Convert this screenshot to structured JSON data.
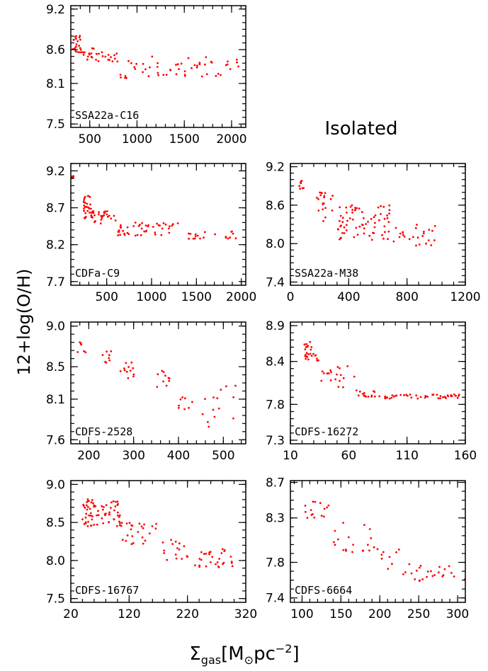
{
  "figure": {
    "ylabel": "12+log(O/H)",
    "xlabel": {
      "sigma": "Σ",
      "sub": "gas",
      "bracket_open": "[M",
      "sun": "⊙",
      "unit": "pc",
      "exp": "−2",
      "bracket_close": "]"
    },
    "annotation": "Isolated"
  },
  "chart_data": [
    {
      "type": "scatter",
      "label": "SSA22a-C16",
      "xlim": [
        300,
        2150
      ],
      "ylim": [
        7.45,
        9.25
      ],
      "xticks": [
        500,
        1000,
        1500,
        2000
      ],
      "yticks": [
        7.5,
        8.1,
        8.6,
        9.2
      ],
      "ytick_labels": [
        "7.5",
        "8.1",
        "8.6",
        "9.2"
      ],
      "seed": 11,
      "groups": [
        {
          "n": 22,
          "x": [
            320,
            420
          ],
          "y": [
            8.55,
            8.82
          ]
        },
        {
          "n": 28,
          "x": [
            420,
            800
          ],
          "y": [
            8.42,
            8.62
          ]
        },
        {
          "n": 55,
          "x": [
            800,
            2080
          ],
          "y": [
            8.18,
            8.5
          ]
        }
      ]
    },
    {
      "type": "scatter",
      "label": "CDFa-C9",
      "xlim": [
        100,
        2050
      ],
      "ylim": [
        7.65,
        9.3
      ],
      "xticks": [
        500,
        1000,
        1500,
        2000
      ],
      "yticks": [
        7.7,
        8.2,
        8.7,
        9.2
      ],
      "ytick_labels": [
        "7.7",
        "8.2",
        "8.7",
        "9.2"
      ],
      "seed": 23,
      "groups": [
        {
          "n": 4,
          "x": [
            105,
            140
          ],
          "y": [
            9.08,
            9.14
          ]
        },
        {
          "n": 30,
          "x": [
            240,
            330
          ],
          "y": [
            8.55,
            8.88
          ]
        },
        {
          "n": 30,
          "x": [
            330,
            600
          ],
          "y": [
            8.48,
            8.66
          ]
        },
        {
          "n": 45,
          "x": [
            600,
            1300
          ],
          "y": [
            8.32,
            8.5
          ]
        },
        {
          "n": 20,
          "x": [
            1300,
            1950
          ],
          "y": [
            8.28,
            8.38
          ]
        }
      ]
    },
    {
      "type": "scatter",
      "label": "SSA22a-M38",
      "xlim": [
        0,
        1200
      ],
      "ylim": [
        7.35,
        9.25
      ],
      "xticks": [
        0,
        400,
        800,
        1200
      ],
      "yticks": [
        7.4,
        8.0,
        8.6,
        9.2
      ],
      "ytick_labels": [
        "7.4",
        "8.0",
        "8.6",
        "9.2"
      ],
      "seed": 37,
      "groups": [
        {
          "n": 8,
          "x": [
            60,
            100
          ],
          "y": [
            8.85,
            9.02
          ]
        },
        {
          "n": 20,
          "x": [
            180,
            320
          ],
          "y": [
            8.35,
            8.8
          ]
        },
        {
          "n": 70,
          "x": [
            320,
            700
          ],
          "y": [
            8.05,
            8.6
          ]
        },
        {
          "n": 25,
          "x": [
            700,
            1000
          ],
          "y": [
            7.95,
            8.3
          ]
        }
      ]
    },
    {
      "type": "scatter",
      "label": "CDFS-2528",
      "xlim": [
        160,
        550
      ],
      "ylim": [
        7.55,
        9.05
      ],
      "xticks": [
        200,
        300,
        400,
        500
      ],
      "yticks": [
        7.6,
        8.1,
        8.5,
        9.0
      ],
      "ytick_labels": [
        "7.6",
        "8.1",
        "8.5",
        "9.0"
      ],
      "seed": 41,
      "groups": [
        {
          "n": 6,
          "x": [
            175,
            195
          ],
          "y": [
            8.65,
            8.8
          ]
        },
        {
          "n": 8,
          "x": [
            220,
            250
          ],
          "y": [
            8.55,
            8.7
          ]
        },
        {
          "n": 12,
          "x": [
            270,
            305
          ],
          "y": [
            8.35,
            8.58
          ]
        },
        {
          "n": 10,
          "x": [
            350,
            380
          ],
          "y": [
            8.2,
            8.45
          ]
        },
        {
          "n": 8,
          "x": [
            400,
            440
          ],
          "y": [
            7.95,
            8.15
          ]
        },
        {
          "n": 14,
          "x": [
            450,
            535
          ],
          "y": [
            7.75,
            8.28
          ]
        }
      ]
    },
    {
      "type": "scatter",
      "label": "CDFS-16272",
      "xlim": [
        10,
        160
      ],
      "ylim": [
        7.25,
        8.95
      ],
      "xticks": [
        10,
        60,
        110,
        160
      ],
      "yticks": [
        7.3,
        7.8,
        8.4,
        8.9
      ],
      "ytick_labels": [
        "7.3",
        "7.8",
        "8.4",
        "8.9"
      ],
      "seed": 53,
      "groups": [
        {
          "n": 25,
          "x": [
            22,
            35
          ],
          "y": [
            8.4,
            8.72
          ]
        },
        {
          "n": 20,
          "x": [
            35,
            65
          ],
          "y": [
            7.98,
            8.35
          ]
        },
        {
          "n": 15,
          "x": [
            65,
            85
          ],
          "y": [
            7.9,
            8.0
          ]
        },
        {
          "n": 45,
          "x": [
            85,
            155
          ],
          "y": [
            7.88,
            7.94
          ]
        }
      ]
    },
    {
      "type": "scatter",
      "label": "CDFS-16767",
      "xlim": [
        20,
        320
      ],
      "ylim": [
        7.45,
        9.05
      ],
      "xticks": [
        20,
        120,
        220,
        320
      ],
      "yticks": [
        7.5,
        8.0,
        8.5,
        9.0
      ],
      "ytick_labels": [
        "7.5",
        "8.0",
        "8.5",
        "9.0"
      ],
      "seed": 67,
      "groups": [
        {
          "n": 70,
          "x": [
            40,
            105
          ],
          "y": [
            8.45,
            8.82
          ]
        },
        {
          "n": 25,
          "x": [
            105,
            170
          ],
          "y": [
            8.2,
            8.5
          ]
        },
        {
          "n": 15,
          "x": [
            170,
            220
          ],
          "y": [
            8.0,
            8.35
          ]
        },
        {
          "n": 30,
          "x": [
            220,
            300
          ],
          "y": [
            7.88,
            8.15
          ]
        }
      ]
    },
    {
      "type": "scatter",
      "label": "CDFS-6664",
      "xlim": [
        85,
        310
      ],
      "ylim": [
        7.35,
        8.72
      ],
      "xticks": [
        100,
        150,
        200,
        250,
        300
      ],
      "yticks": [
        7.4,
        7.8,
        8.3,
        8.7
      ],
      "ytick_labels": [
        "7.4",
        "7.8",
        "8.3",
        "8.7"
      ],
      "seed": 79,
      "groups": [
        {
          "n": 15,
          "x": [
            103,
            135
          ],
          "y": [
            8.3,
            8.5
          ]
        },
        {
          "n": 20,
          "x": [
            135,
            200
          ],
          "y": [
            7.9,
            8.25
          ]
        },
        {
          "n": 8,
          "x": [
            200,
            230
          ],
          "y": [
            7.7,
            7.95
          ]
        },
        {
          "n": 25,
          "x": [
            230,
            310
          ],
          "y": [
            7.58,
            7.78
          ]
        }
      ]
    }
  ]
}
